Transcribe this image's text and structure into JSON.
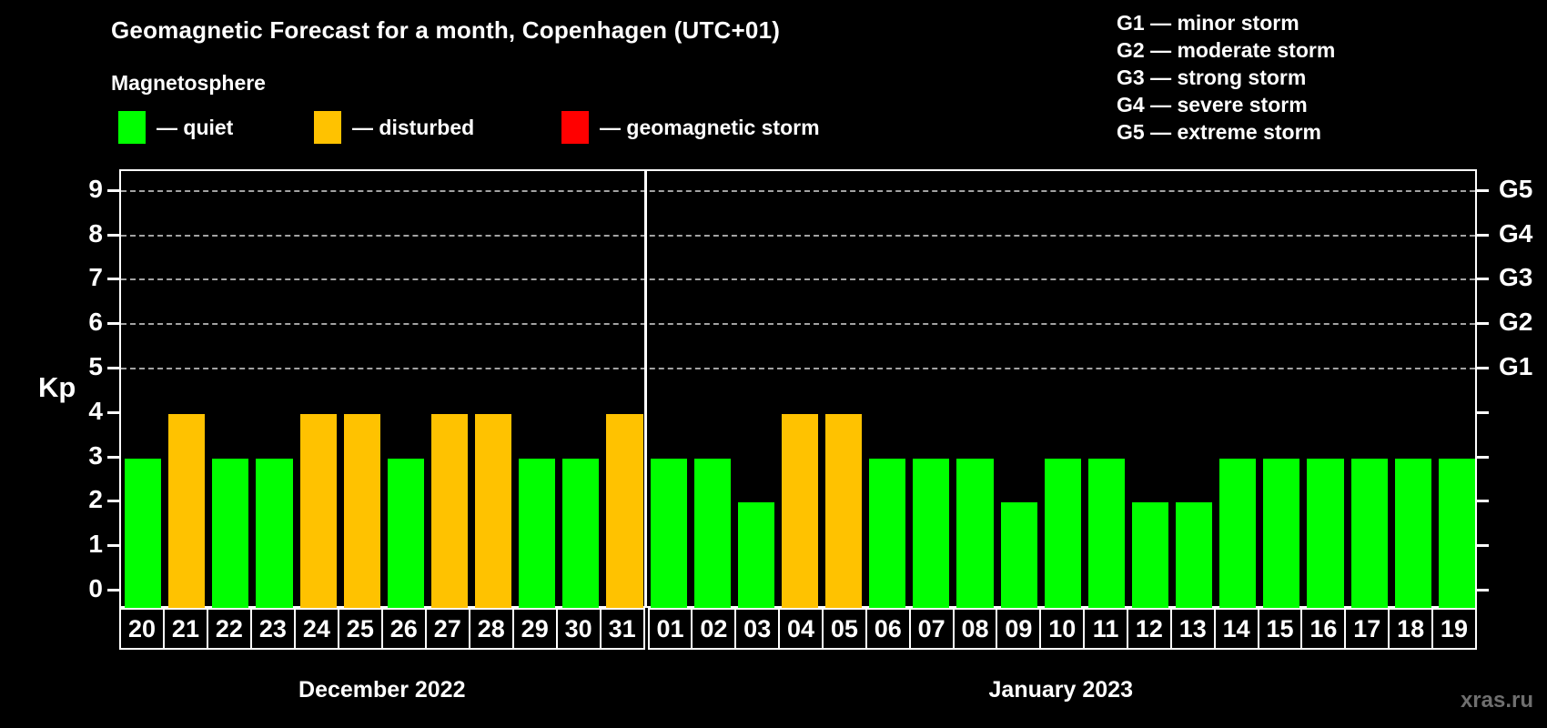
{
  "header": {
    "title": "Geomagnetic Forecast for a month, Copenhagen (UTC+01)",
    "subtitle": "Magnetosphere"
  },
  "status_legend": [
    {
      "name": "quiet",
      "label": "— quiet",
      "color": "#00ff00"
    },
    {
      "name": "disturbed",
      "label": "— disturbed",
      "color": "#ffc200"
    },
    {
      "name": "storm",
      "label": "— geomagnetic storm",
      "color": "#ff0000"
    }
  ],
  "storm_scale_legend": [
    "G1 — minor storm",
    "G2 — moderate storm",
    "G3 — strong storm",
    "G4 — severe storm",
    "G5 — extreme storm"
  ],
  "watermark": "xras.ru",
  "chart_data": {
    "type": "bar",
    "title": "Geomagnetic Forecast for a month, Copenhagen (UTC+01)",
    "ylabel": "Kp",
    "ylim": [
      0,
      9
    ],
    "y_ticks": [
      0,
      1,
      2,
      3,
      4,
      5,
      6,
      7,
      8,
      9
    ],
    "gridline_levels": [
      5,
      6,
      7,
      8,
      9
    ],
    "right_axis_labels": [
      {
        "kp": 5,
        "label": "G1"
      },
      {
        "kp": 6,
        "label": "G2"
      },
      {
        "kp": 7,
        "label": "G3"
      },
      {
        "kp": 8,
        "label": "G4"
      },
      {
        "kp": 9,
        "label": "G5"
      }
    ],
    "months": [
      {
        "label": "December 2022",
        "days": 12
      },
      {
        "label": "January 2023",
        "days": 19
      }
    ],
    "categories": [
      "20",
      "21",
      "22",
      "23",
      "24",
      "25",
      "26",
      "27",
      "28",
      "29",
      "30",
      "31",
      "01",
      "02",
      "03",
      "04",
      "05",
      "06",
      "07",
      "08",
      "09",
      "10",
      "11",
      "12",
      "13",
      "14",
      "15",
      "16",
      "17",
      "18",
      "19"
    ],
    "values": [
      3,
      4,
      3,
      3,
      4,
      4,
      3,
      4,
      4,
      3,
      3,
      4,
      3,
      3,
      2,
      4,
      4,
      3,
      3,
      3,
      2,
      3,
      3,
      2,
      2,
      3,
      3,
      3,
      3,
      3,
      3
    ],
    "statuses": [
      "quiet",
      "disturbed",
      "quiet",
      "quiet",
      "disturbed",
      "disturbed",
      "quiet",
      "disturbed",
      "disturbed",
      "quiet",
      "quiet",
      "disturbed",
      "quiet",
      "quiet",
      "quiet",
      "disturbed",
      "disturbed",
      "quiet",
      "quiet",
      "quiet",
      "quiet",
      "quiet",
      "quiet",
      "quiet",
      "quiet",
      "quiet",
      "quiet",
      "quiet",
      "quiet",
      "quiet",
      "quiet"
    ],
    "colors": {
      "quiet": "#00ff00",
      "disturbed": "#ffc200",
      "storm": "#ff0000"
    },
    "legend_position": "top",
    "grid": "dashed horizontal at storm levels"
  }
}
